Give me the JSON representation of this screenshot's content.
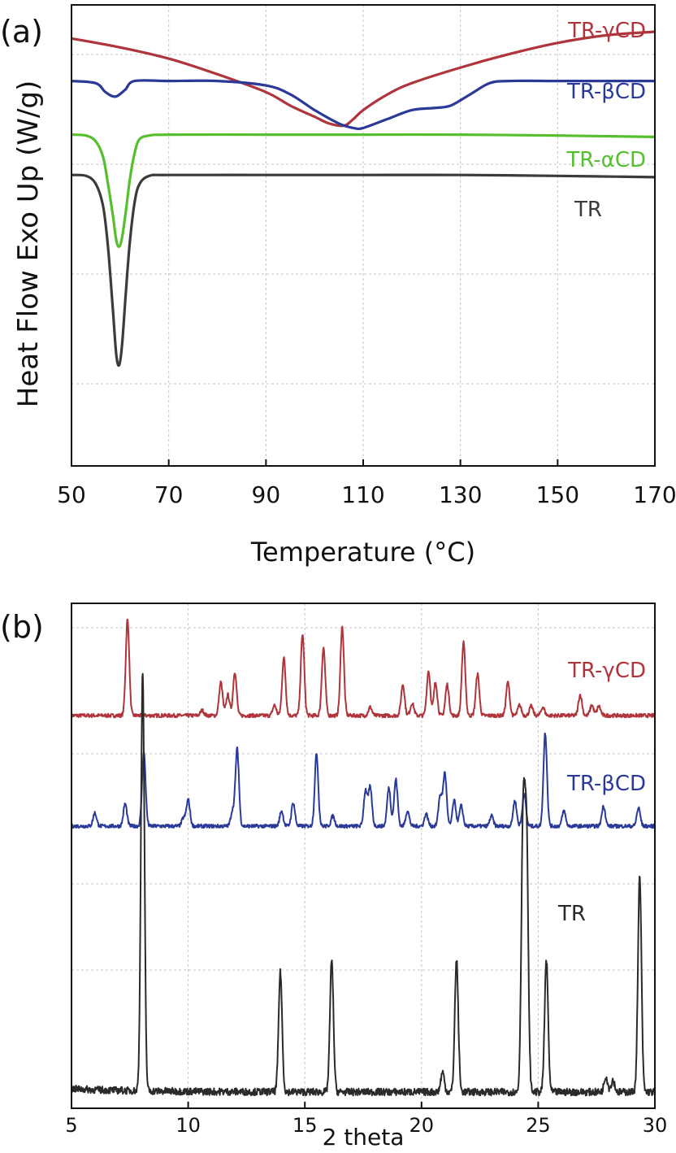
{
  "panels": [
    {
      "tag": "(a)",
      "type": "line",
      "xlabel": "Temperature (°C)",
      "ylabel": "Heat Flow Exo Up (W/g)",
      "xlim": [
        50,
        170
      ],
      "xticks": [
        "50",
        "70",
        "90",
        "110",
        "130",
        "150",
        "170"
      ],
      "grid": true,
      "series": [
        {
          "name": "TR-γCD",
          "color": "#b0343b",
          "x": [
            50,
            60,
            70,
            80,
            90,
            95,
            100,
            103,
            106,
            108,
            110,
            115,
            120,
            130,
            140,
            150,
            160,
            170
          ],
          "y": [
            9.55,
            9.35,
            9.1,
            8.75,
            8.35,
            8.05,
            7.8,
            7.65,
            7.6,
            7.75,
            7.95,
            8.3,
            8.55,
            8.9,
            9.2,
            9.45,
            9.62,
            9.7
          ]
        },
        {
          "name": "TR-βCD",
          "color": "#2b3a98",
          "x": [
            50,
            55,
            57,
            59,
            61,
            63,
            70,
            80,
            90,
            95,
            100,
            105,
            108,
            110,
            115,
            120,
            125,
            128,
            132,
            136,
            140,
            150,
            160,
            170
          ],
          "y": [
            8.6,
            8.55,
            8.35,
            8.25,
            8.4,
            8.6,
            8.6,
            8.6,
            8.5,
            8.3,
            7.95,
            7.65,
            7.55,
            7.55,
            7.75,
            7.95,
            8.0,
            8.05,
            8.3,
            8.55,
            8.6,
            8.6,
            8.6,
            8.6
          ]
        },
        {
          "name": "TR-αCD",
          "color": "#55bf2e",
          "x": [
            50,
            53,
            55,
            56.5,
            57.5,
            58.5,
            59.2,
            59.8,
            60.4,
            61.2,
            62,
            63,
            64,
            66,
            70,
            90,
            110,
            130,
            150,
            170
          ],
          "y": [
            7.4,
            7.38,
            7.25,
            6.9,
            6.3,
            5.6,
            5.05,
            4.9,
            5.1,
            5.7,
            6.4,
            7.0,
            7.3,
            7.38,
            7.4,
            7.4,
            7.4,
            7.4,
            7.38,
            7.35
          ]
        },
        {
          "name": "TR",
          "color": "#3b3b3b",
          "x": [
            50,
            53,
            55,
            56.5,
            57.5,
            58.5,
            59.2,
            59.8,
            60.4,
            61.2,
            62,
            63,
            64,
            66,
            70,
            90,
            110,
            130,
            150,
            170
          ],
          "y": [
            6.5,
            6.48,
            6.3,
            5.8,
            4.9,
            3.5,
            2.5,
            2.25,
            2.7,
            3.9,
            5.0,
            5.9,
            6.3,
            6.48,
            6.5,
            6.5,
            6.5,
            6.5,
            6.48,
            6.45
          ]
        }
      ]
    },
    {
      "tag": "(b)",
      "type": "line",
      "xlabel": "2 theta",
      "xlim": [
        5,
        30
      ],
      "xticks": [
        "5",
        "10",
        "15",
        "20",
        "25",
        "30"
      ],
      "grid": true,
      "series": [
        {
          "name": "TR-γCD",
          "color": "#b0343b",
          "peaks": [
            [
              7.4,
              9.2
            ],
            [
              10.6,
              0.5
            ],
            [
              11.4,
              3.2
            ],
            [
              11.7,
              2.0
            ],
            [
              12.0,
              4.2
            ],
            [
              13.7,
              1.0
            ],
            [
              14.1,
              5.5
            ],
            [
              14.9,
              7.8
            ],
            [
              15.8,
              6.5
            ],
            [
              16.6,
              8.5
            ],
            [
              17.8,
              0.8
            ],
            [
              19.2,
              3.0
            ],
            [
              19.6,
              1.2
            ],
            [
              20.3,
              4.3
            ],
            [
              20.6,
              3.2
            ],
            [
              21.1,
              3.0
            ],
            [
              21.8,
              7.0
            ],
            [
              22.4,
              4.0
            ],
            [
              23.7,
              3.2
            ],
            [
              24.2,
              1.0
            ],
            [
              24.7,
              0.9
            ],
            [
              25.2,
              0.8
            ],
            [
              26.8,
              2.0
            ],
            [
              27.3,
              1.0
            ],
            [
              27.6,
              0.9
            ]
          ],
          "noise": 0.18
        },
        {
          "name": "TR-βCD",
          "color": "#2b3a98",
          "peaks": [
            [
              6.0,
              1.3
            ],
            [
              7.3,
              2.2
            ],
            [
              8.1,
              7.2
            ],
            [
              9.8,
              0.8
            ],
            [
              10.0,
              2.6
            ],
            [
              11.9,
              1.5
            ],
            [
              12.1,
              7.6
            ],
            [
              14.0,
              1.5
            ],
            [
              14.5,
              2.3
            ],
            [
              15.5,
              7.1
            ],
            [
              16.2,
              1.0
            ],
            [
              17.6,
              3.5
            ],
            [
              17.8,
              3.8
            ],
            [
              18.6,
              3.8
            ],
            [
              18.9,
              4.6
            ],
            [
              19.4,
              1.5
            ],
            [
              20.2,
              1.2
            ],
            [
              20.8,
              3.0
            ],
            [
              21.0,
              5.2
            ],
            [
              21.4,
              2.5
            ],
            [
              21.7,
              2.0
            ],
            [
              23.0,
              1.0
            ],
            [
              24.0,
              2.5
            ],
            [
              24.4,
              3.2
            ],
            [
              25.3,
              9.2
            ],
            [
              26.1,
              1.5
            ],
            [
              27.8,
              2.0
            ],
            [
              29.3,
              1.8
            ]
          ],
          "noise": 0.18
        },
        {
          "name": "TR",
          "color": "#2a2a2a",
          "peaks": [
            [
              8.05,
              10.5
            ],
            [
              13.95,
              3.0
            ],
            [
              16.15,
              3.3
            ],
            [
              20.9,
              0.5
            ],
            [
              21.5,
              3.3
            ],
            [
              24.35,
              6.6
            ],
            [
              24.5,
              6.2
            ],
            [
              25.35,
              3.3
            ],
            [
              27.9,
              0.4
            ],
            [
              28.2,
              0.3
            ],
            [
              29.35,
              5.4
            ]
          ],
          "noise": 0.09
        }
      ]
    }
  ]
}
